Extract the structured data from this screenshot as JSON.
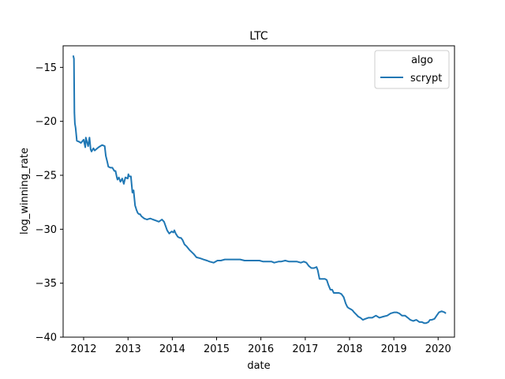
{
  "chart_data": {
    "type": "line",
    "title": "LTC",
    "xlabel": "date",
    "ylabel": "log_winning_rate",
    "legend": {
      "title": "algo",
      "placement": "top-right"
    },
    "xlim": [
      "2011-07-16",
      "2020-05-15"
    ],
    "ylim": [
      -40,
      -13
    ],
    "x_ticks": [
      "2012",
      "2013",
      "2014",
      "2015",
      "2016",
      "2017",
      "2018",
      "2019",
      "2020"
    ],
    "y_ticks": [
      -15,
      -20,
      -25,
      -30,
      -35,
      -40
    ],
    "grid": false,
    "series": [
      {
        "name": "scrypt",
        "color": "#1f77b4",
        "x": [
          "2011-10-07",
          "2011-10-13",
          "2011-10-17",
          "2011-10-21",
          "2011-10-27",
          "2011-11-06",
          "2011-11-26",
          "2011-12-10",
          "2012-01-01",
          "2012-01-15",
          "2012-01-19",
          "2012-02-07",
          "2012-02-18",
          "2012-02-28",
          "2012-03-06",
          "2012-03-11",
          "2012-03-22",
          "2012-04-01",
          "2012-05-03",
          "2012-06-01",
          "2012-06-23",
          "2012-07-02",
          "2012-07-13",
          "2012-07-23",
          "2012-08-09",
          "2012-08-25",
          "2012-09-10",
          "2012-09-20",
          "2012-10-01",
          "2012-10-06",
          "2012-10-17",
          "2012-10-30",
          "2012-11-14",
          "2012-11-27",
          "2012-12-10",
          "2012-12-30",
          "2013-01-04",
          "2013-01-09",
          "2013-01-25",
          "2013-02-06",
          "2013-02-16",
          "2013-02-28",
          "2013-03-06",
          "2013-03-11",
          "2013-03-22",
          "2013-04-01",
          "2013-04-10",
          "2013-04-21",
          "2013-05-14",
          "2013-06-06",
          "2013-07-03",
          "2013-07-25",
          "2013-08-20",
          "2013-09-12",
          "2013-10-07",
          "2013-10-25",
          "2013-11-19",
          "2013-12-07",
          "2013-12-27",
          "2014-01-10",
          "2014-01-18",
          "2014-01-29",
          "2014-02-15",
          "2014-03-03",
          "2014-03-14",
          "2014-03-27",
          "2014-04-11",
          "2014-04-30",
          "2014-05-21",
          "2014-06-27",
          "2014-07-19",
          "2014-08-20",
          "2014-09-14",
          "2014-10-14",
          "2014-11-04",
          "2014-12-07",
          "2015-01-08",
          "2015-02-05",
          "2015-03-10",
          "2015-04-15",
          "2015-05-25",
          "2015-06-15",
          "2015-07-14",
          "2015-08-20",
          "2015-09-30",
          "2015-10-20",
          "2015-11-20",
          "2015-12-20",
          "2016-01-20",
          "2016-02-25",
          "2016-03-30",
          "2016-04-20",
          "2016-05-25",
          "2016-06-15",
          "2016-07-20",
          "2016-08-20",
          "2016-09-25",
          "2016-10-25",
          "2016-11-25",
          "2016-12-20",
          "2017-01-10",
          "2017-01-30",
          "2017-02-20",
          "2017-03-14",
          "2017-04-04",
          "2017-04-14",
          "2017-04-28",
          "2017-05-20",
          "2017-06-12",
          "2017-06-27",
          "2017-07-12",
          "2017-07-27",
          "2017-08-11",
          "2017-08-24",
          "2017-09-12",
          "2017-10-06",
          "2017-10-25",
          "2017-11-14",
          "2017-12-01",
          "2017-12-14",
          "2017-12-24",
          "2018-01-10",
          "2018-01-24",
          "2018-02-08",
          "2018-02-25",
          "2018-03-14",
          "2018-03-31",
          "2018-04-21",
          "2018-05-11",
          "2018-06-05",
          "2018-07-07",
          "2018-08-06",
          "2018-09-04",
          "2018-10-05",
          "2018-11-08",
          "2018-12-05",
          "2019-01-04",
          "2019-01-24",
          "2019-02-15",
          "2019-03-09",
          "2019-04-03",
          "2019-04-26",
          "2019-05-17",
          "2019-06-09",
          "2019-07-05",
          "2019-07-31",
          "2019-08-21",
          "2019-09-07",
          "2019-09-24",
          "2019-10-13",
          "2019-10-26",
          "2019-11-09",
          "2019-12-02",
          "2019-12-20",
          "2020-01-08",
          "2020-01-30",
          "2020-02-23",
          "2020-03-05"
        ],
        "y": [
          -13.9,
          -14.2,
          -19.2,
          -20.2,
          -20.6,
          -21.8,
          -21.9,
          -22.0,
          -21.7,
          -22.4,
          -21.5,
          -22.3,
          -21.5,
          -22.6,
          -22.8,
          -22.7,
          -22.5,
          -22.7,
          -22.4,
          -22.2,
          -22.3,
          -23.2,
          -23.7,
          -24.2,
          -24.3,
          -24.3,
          -24.6,
          -24.6,
          -25.2,
          -25.4,
          -25.2,
          -25.6,
          -25.3,
          -25.8,
          -25.2,
          -25.3,
          -24.9,
          -25.1,
          -25.1,
          -26.6,
          -26.4,
          -27.8,
          -28.0,
          -28.2,
          -28.5,
          -28.6,
          -28.6,
          -28.8,
          -29.0,
          -29.1,
          -29.0,
          -29.1,
          -29.2,
          -29.3,
          -29.1,
          -29.3,
          -30.1,
          -30.4,
          -30.2,
          -30.3,
          -30.1,
          -30.4,
          -30.7,
          -30.8,
          -30.8,
          -31.0,
          -31.4,
          -31.6,
          -31.9,
          -32.3,
          -32.6,
          -32.7,
          -32.8,
          -32.9,
          -33.0,
          -33.1,
          -32.9,
          -32.9,
          -32.8,
          -32.8,
          -32.8,
          -32.8,
          -32.8,
          -32.9,
          -32.9,
          -32.9,
          -32.9,
          -32.9,
          -33.0,
          -33.0,
          -33.0,
          -33.1,
          -33.0,
          -33.0,
          -32.9,
          -33.0,
          -33.0,
          -33.0,
          -33.1,
          -33.0,
          -33.1,
          -33.4,
          -33.6,
          -33.6,
          -33.5,
          -33.8,
          -34.6,
          -34.6,
          -34.6,
          -34.7,
          -35.2,
          -35.6,
          -35.6,
          -35.9,
          -35.9,
          -35.9,
          -36.0,
          -36.3,
          -36.9,
          -37.2,
          -37.3,
          -37.4,
          -37.5,
          -37.7,
          -37.9,
          -38.1,
          -38.2,
          -38.4,
          -38.3,
          -38.2,
          -38.2,
          -38.0,
          -38.2,
          -38.1,
          -38.0,
          -37.8,
          -37.7,
          -37.7,
          -37.8,
          -38.0,
          -38.0,
          -38.2,
          -38.4,
          -38.5,
          -38.4,
          -38.6,
          -38.6,
          -38.7,
          -38.7,
          -38.6,
          -38.4,
          -38.4,
          -38.3,
          -38.0,
          -37.7,
          -37.6,
          -37.7,
          -37.8
        ]
      }
    ]
  }
}
